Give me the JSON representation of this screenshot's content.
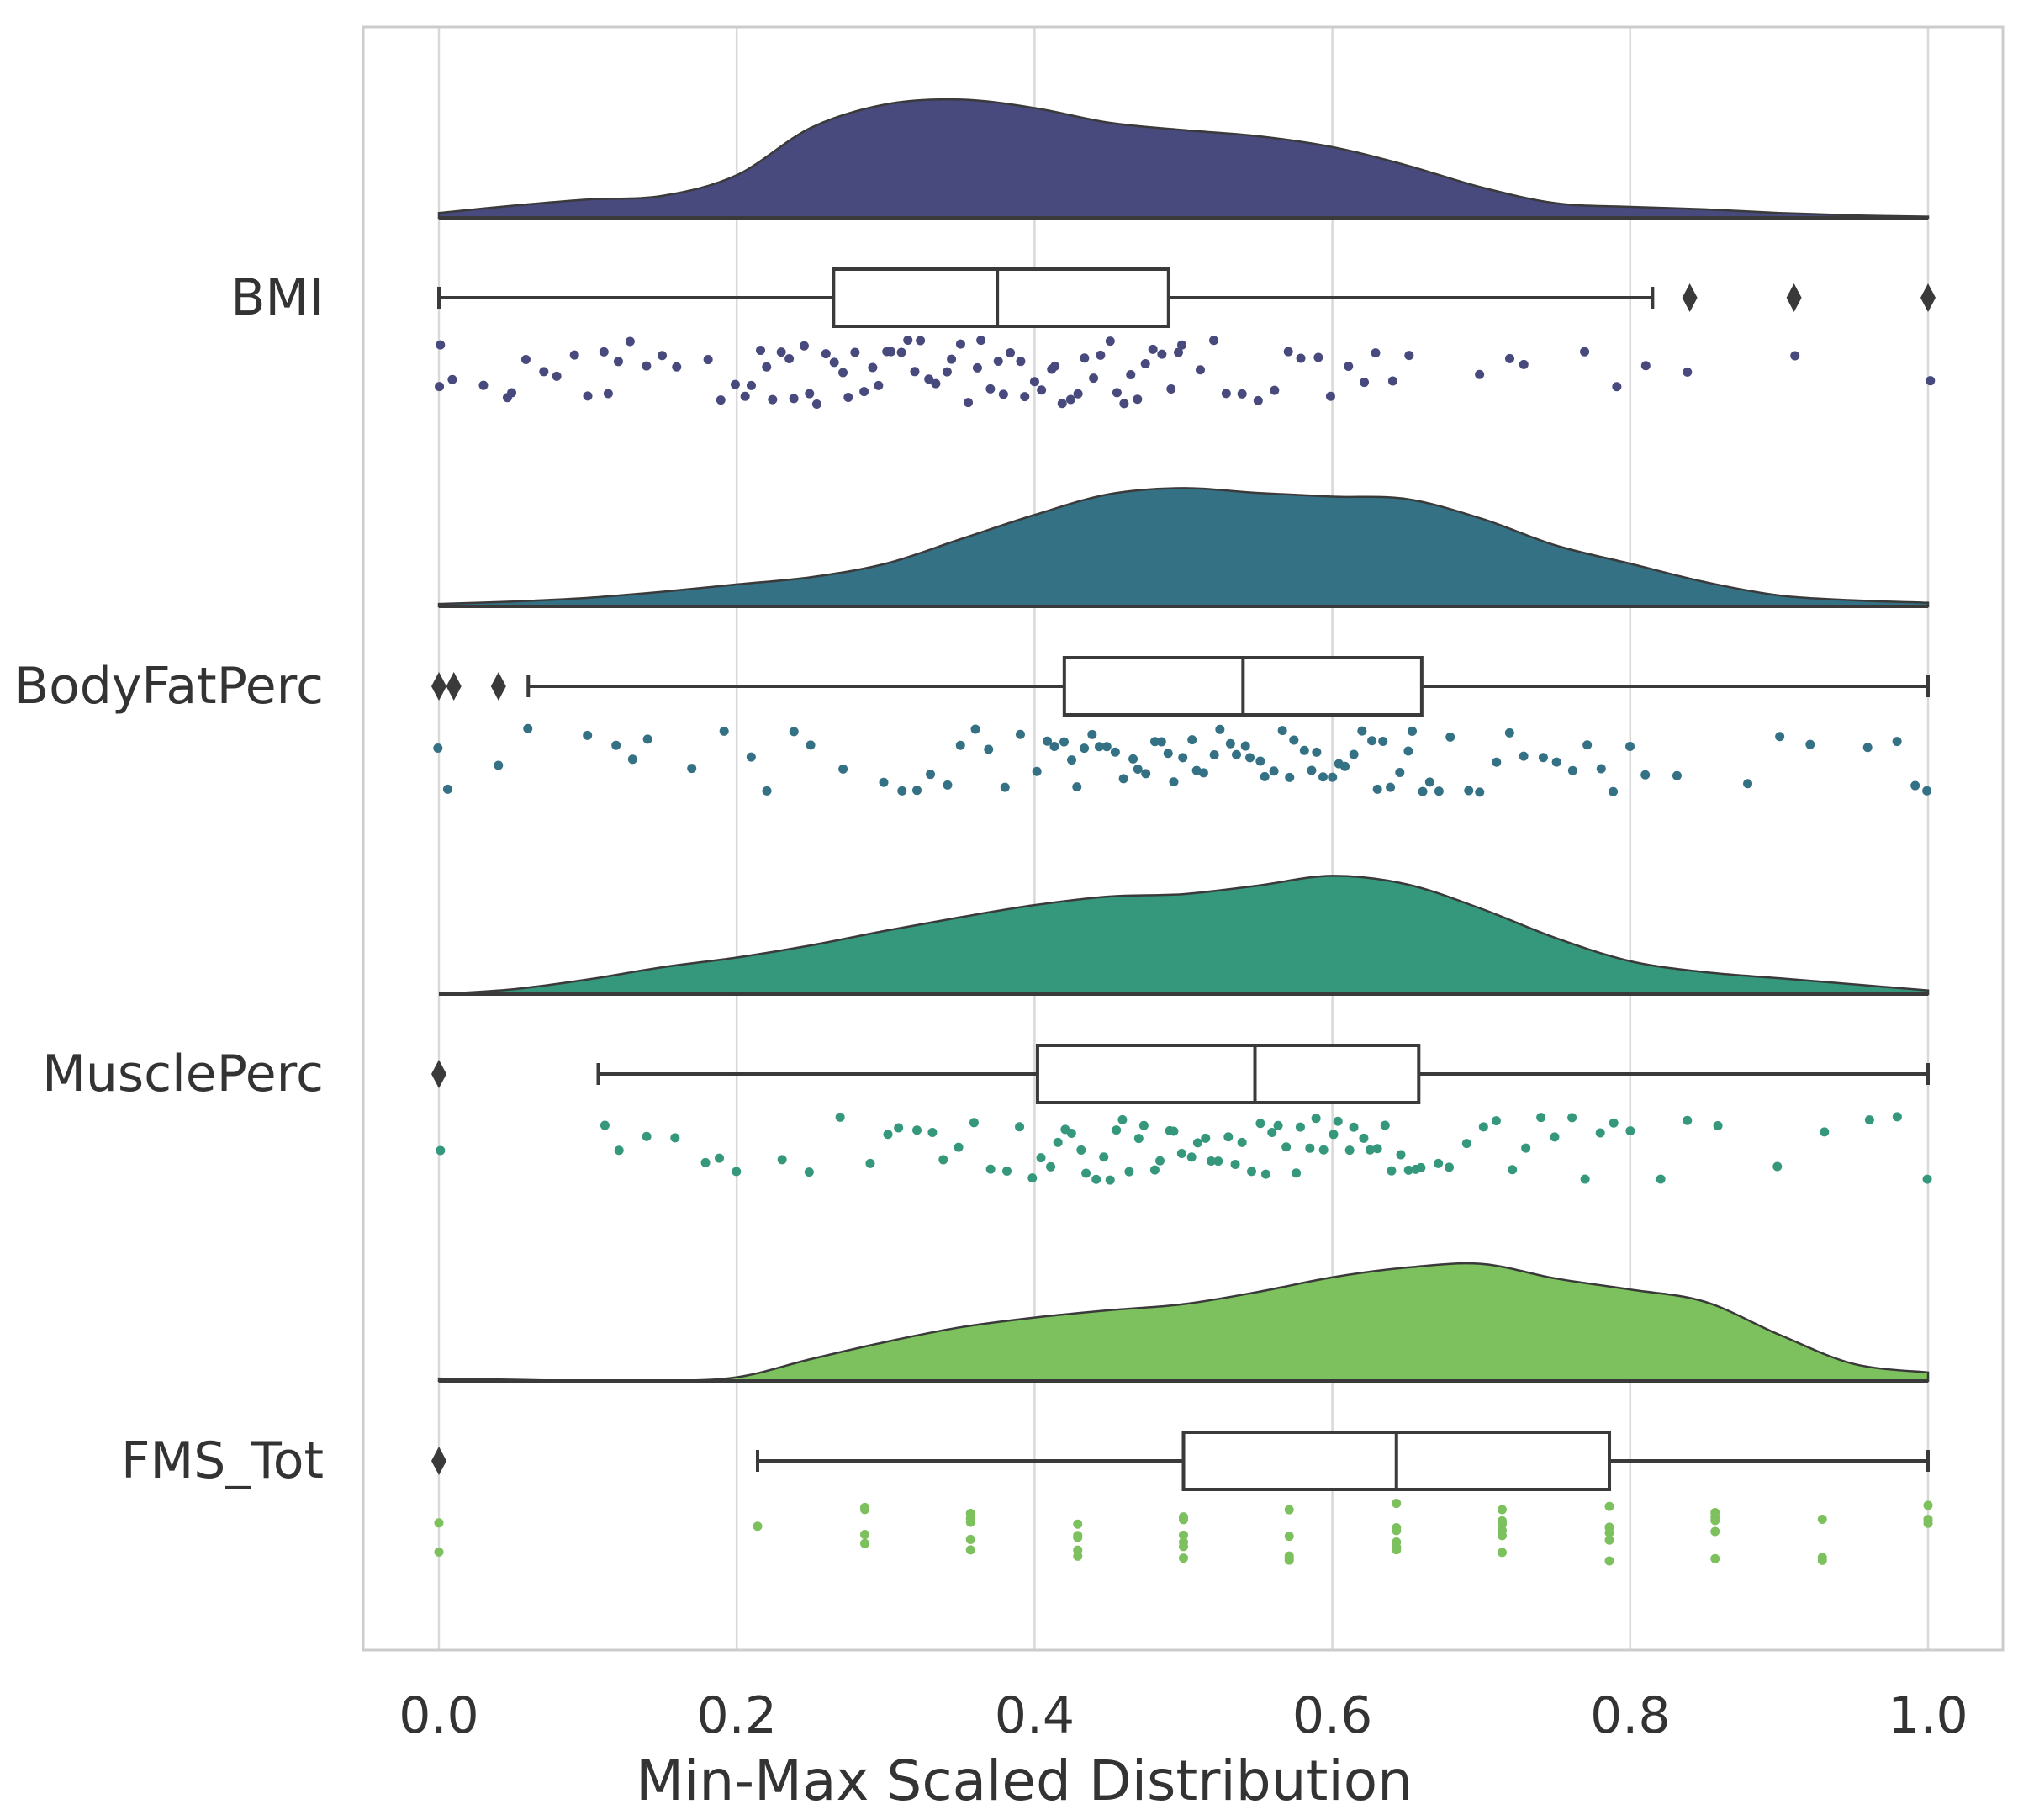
{
  "chart_data": {
    "type": "raincloud",
    "title": "",
    "xlabel": "Min-Max Scaled Distribution",
    "ylabel": "",
    "xlim": [
      -0.05,
      1.05
    ],
    "x_ticks": [
      0.0,
      0.2,
      0.4,
      0.6,
      0.8,
      1.0
    ],
    "x_tick_labels": [
      "0.0",
      "0.2",
      "0.4",
      "0.6",
      "0.8",
      "1.0"
    ],
    "grid": "vertical",
    "series": [
      {
        "name": "BMI",
        "color": "#48497c",
        "density": [
          [
            0.0,
            0.04
          ],
          [
            0.05,
            0.1
          ],
          [
            0.1,
            0.15
          ],
          [
            0.15,
            0.18
          ],
          [
            0.2,
            0.35
          ],
          [
            0.25,
            0.74
          ],
          [
            0.3,
            0.93
          ],
          [
            0.35,
            0.97
          ],
          [
            0.4,
            0.9
          ],
          [
            0.45,
            0.78
          ],
          [
            0.5,
            0.72
          ],
          [
            0.55,
            0.67
          ],
          [
            0.6,
            0.58
          ],
          [
            0.65,
            0.43
          ],
          [
            0.7,
            0.25
          ],
          [
            0.75,
            0.12
          ],
          [
            0.8,
            0.09
          ],
          [
            0.85,
            0.07
          ],
          [
            0.9,
            0.04
          ],
          [
            0.95,
            0.02
          ],
          [
            1.0,
            0.01
          ]
        ],
        "box": {
          "whisker_low": 0.0,
          "q1": 0.265,
          "median": 0.375,
          "q3": 0.49,
          "whisker_high": 0.815
        },
        "outliers": [
          0.84,
          0.91,
          1.0
        ],
        "points": [
          0,
          0,
          0.01,
          0.03,
          0.045,
          0.05,
          0.06,
          0.07,
          0.08,
          0.09,
          0.1,
          0.11,
          0.115,
          0.12,
          0.13,
          0.14,
          0.15,
          0.16,
          0.18,
          0.19,
          0.2,
          0.205,
          0.21,
          0.215,
          0.22,
          0.225,
          0.23,
          0.235,
          0.24,
          0.245,
          0.25,
          0.255,
          0.26,
          0.265,
          0.27,
          0.275,
          0.28,
          0.285,
          0.29,
          0.295,
          0.3,
          0.305,
          0.31,
          0.315,
          0.32,
          0.325,
          0.33,
          0.335,
          0.34,
          0.345,
          0.35,
          0.355,
          0.36,
          0.365,
          0.37,
          0.375,
          0.38,
          0.385,
          0.39,
          0.395,
          0.4,
          0.405,
          0.41,
          0.415,
          0.42,
          0.425,
          0.43,
          0.435,
          0.44,
          0.445,
          0.45,
          0.455,
          0.46,
          0.465,
          0.47,
          0.475,
          0.48,
          0.485,
          0.49,
          0.495,
          0.5,
          0.51,
          0.52,
          0.53,
          0.54,
          0.55,
          0.56,
          0.57,
          0.58,
          0.59,
          0.6,
          0.61,
          0.62,
          0.63,
          0.64,
          0.65,
          0.7,
          0.72,
          0.73,
          0.77,
          0.79,
          0.81,
          0.84,
          0.91,
          1.0
        ]
      },
      {
        "name": "BodyFatPerc",
        "color": "#357185",
        "density": [
          [
            0.0,
            0.02
          ],
          [
            0.05,
            0.04
          ],
          [
            0.1,
            0.07
          ],
          [
            0.15,
            0.12
          ],
          [
            0.2,
            0.18
          ],
          [
            0.25,
            0.24
          ],
          [
            0.3,
            0.35
          ],
          [
            0.35,
            0.55
          ],
          [
            0.4,
            0.75
          ],
          [
            0.45,
            0.92
          ],
          [
            0.5,
            0.97
          ],
          [
            0.55,
            0.93
          ],
          [
            0.6,
            0.9
          ],
          [
            0.65,
            0.88
          ],
          [
            0.7,
            0.72
          ],
          [
            0.75,
            0.5
          ],
          [
            0.8,
            0.35
          ],
          [
            0.85,
            0.2
          ],
          [
            0.9,
            0.09
          ],
          [
            0.95,
            0.05
          ],
          [
            1.0,
            0.03
          ]
        ],
        "box": {
          "whisker_low": 0.06,
          "q1": 0.42,
          "median": 0.54,
          "q3": 0.66,
          "whisker_high": 1.0
        },
        "outliers": [
          0.0,
          0.01,
          0.04
        ],
        "points": [
          0,
          0.005,
          0.04,
          0.06,
          0.1,
          0.12,
          0.13,
          0.14,
          0.17,
          0.19,
          0.21,
          0.22,
          0.24,
          0.25,
          0.27,
          0.3,
          0.31,
          0.32,
          0.33,
          0.34,
          0.35,
          0.36,
          0.37,
          0.38,
          0.39,
          0.4,
          0.41,
          0.415,
          0.42,
          0.425,
          0.43,
          0.435,
          0.44,
          0.445,
          0.45,
          0.455,
          0.46,
          0.465,
          0.47,
          0.475,
          0.48,
          0.485,
          0.49,
          0.495,
          0.5,
          0.505,
          0.51,
          0.515,
          0.52,
          0.525,
          0.53,
          0.535,
          0.54,
          0.545,
          0.55,
          0.555,
          0.56,
          0.565,
          0.57,
          0.575,
          0.58,
          0.585,
          0.59,
          0.595,
          0.6,
          0.605,
          0.61,
          0.615,
          0.62,
          0.625,
          0.63,
          0.635,
          0.64,
          0.645,
          0.65,
          0.655,
          0.66,
          0.665,
          0.67,
          0.68,
          0.69,
          0.7,
          0.71,
          0.72,
          0.73,
          0.74,
          0.75,
          0.76,
          0.77,
          0.78,
          0.79,
          0.8,
          0.81,
          0.83,
          0.88,
          0.9,
          0.92,
          0.96,
          0.98,
          0.99,
          1.0
        ]
      },
      {
        "name": "MusclePerc",
        "color": "#35977b",
        "density": [
          [
            0.0,
            0.0
          ],
          [
            0.05,
            0.04
          ],
          [
            0.1,
            0.12
          ],
          [
            0.15,
            0.22
          ],
          [
            0.2,
            0.3
          ],
          [
            0.25,
            0.4
          ],
          [
            0.3,
            0.52
          ],
          [
            0.35,
            0.63
          ],
          [
            0.4,
            0.73
          ],
          [
            0.45,
            0.8
          ],
          [
            0.5,
            0.82
          ],
          [
            0.55,
            0.89
          ],
          [
            0.6,
            0.97
          ],
          [
            0.65,
            0.9
          ],
          [
            0.7,
            0.7
          ],
          [
            0.75,
            0.46
          ],
          [
            0.8,
            0.27
          ],
          [
            0.85,
            0.18
          ],
          [
            0.9,
            0.13
          ],
          [
            0.95,
            0.08
          ],
          [
            1.0,
            0.03
          ]
        ],
        "box": {
          "whisker_low": 0.107,
          "q1": 0.402,
          "median": 0.548,
          "q3": 0.658,
          "whisker_high": 1.0
        },
        "outliers": [
          0.0
        ],
        "points": [
          0,
          0.11,
          0.12,
          0.14,
          0.16,
          0.18,
          0.19,
          0.2,
          0.23,
          0.25,
          0.27,
          0.29,
          0.3,
          0.31,
          0.32,
          0.33,
          0.34,
          0.35,
          0.36,
          0.37,
          0.38,
          0.39,
          0.4,
          0.405,
          0.41,
          0.415,
          0.42,
          0.425,
          0.43,
          0.435,
          0.44,
          0.445,
          0.45,
          0.455,
          0.46,
          0.465,
          0.47,
          0.475,
          0.48,
          0.485,
          0.49,
          0.495,
          0.5,
          0.505,
          0.51,
          0.515,
          0.52,
          0.525,
          0.53,
          0.535,
          0.54,
          0.545,
          0.55,
          0.555,
          0.56,
          0.565,
          0.57,
          0.575,
          0.58,
          0.585,
          0.59,
          0.595,
          0.6,
          0.605,
          0.61,
          0.615,
          0.62,
          0.625,
          0.63,
          0.635,
          0.64,
          0.645,
          0.65,
          0.655,
          0.66,
          0.67,
          0.68,
          0.69,
          0.7,
          0.71,
          0.72,
          0.73,
          0.74,
          0.75,
          0.76,
          0.77,
          0.78,
          0.79,
          0.8,
          0.82,
          0.84,
          0.86,
          0.9,
          0.93,
          0.96,
          0.98,
          1.0
        ]
      },
      {
        "name": "FMS_Tot",
        "color": "#7dc05e",
        "density": [
          [
            0.0,
            0.02
          ],
          [
            0.05,
            0.01
          ],
          [
            0.1,
            0.0
          ],
          [
            0.15,
            0.0
          ],
          [
            0.2,
            0.03
          ],
          [
            0.25,
            0.18
          ],
          [
            0.3,
            0.32
          ],
          [
            0.35,
            0.44
          ],
          [
            0.4,
            0.52
          ],
          [
            0.45,
            0.58
          ],
          [
            0.5,
            0.63
          ],
          [
            0.55,
            0.73
          ],
          [
            0.6,
            0.85
          ],
          [
            0.65,
            0.93
          ],
          [
            0.7,
            0.96
          ],
          [
            0.75,
            0.84
          ],
          [
            0.8,
            0.75
          ],
          [
            0.85,
            0.65
          ],
          [
            0.9,
            0.38
          ],
          [
            0.95,
            0.14
          ],
          [
            1.0,
            0.07
          ]
        ],
        "box": {
          "whisker_low": 0.214,
          "q1": 0.5,
          "median": 0.643,
          "q3": 0.786,
          "whisker_high": 1.0
        },
        "outliers": [
          0.0
        ],
        "points": [
          0,
          0,
          0.214,
          0.286,
          0.286,
          0.286,
          0.286,
          0.357,
          0.357,
          0.357,
          0.357,
          0.357,
          0.429,
          0.429,
          0.429,
          0.429,
          0.429,
          0.5,
          0.5,
          0.5,
          0.5,
          0.5,
          0.5,
          0.5,
          0.571,
          0.571,
          0.571,
          0.571,
          0.571,
          0.643,
          0.643,
          0.643,
          0.643,
          0.643,
          0.643,
          0.643,
          0.714,
          0.714,
          0.714,
          0.714,
          0.714,
          0.714,
          0.714,
          0.786,
          0.786,
          0.786,
          0.786,
          0.786,
          0.786,
          0.857,
          0.857,
          0.857,
          0.857,
          0.857,
          0.929,
          0.929,
          0.929,
          1.0,
          1.0,
          1.0,
          1.0
        ]
      }
    ]
  }
}
